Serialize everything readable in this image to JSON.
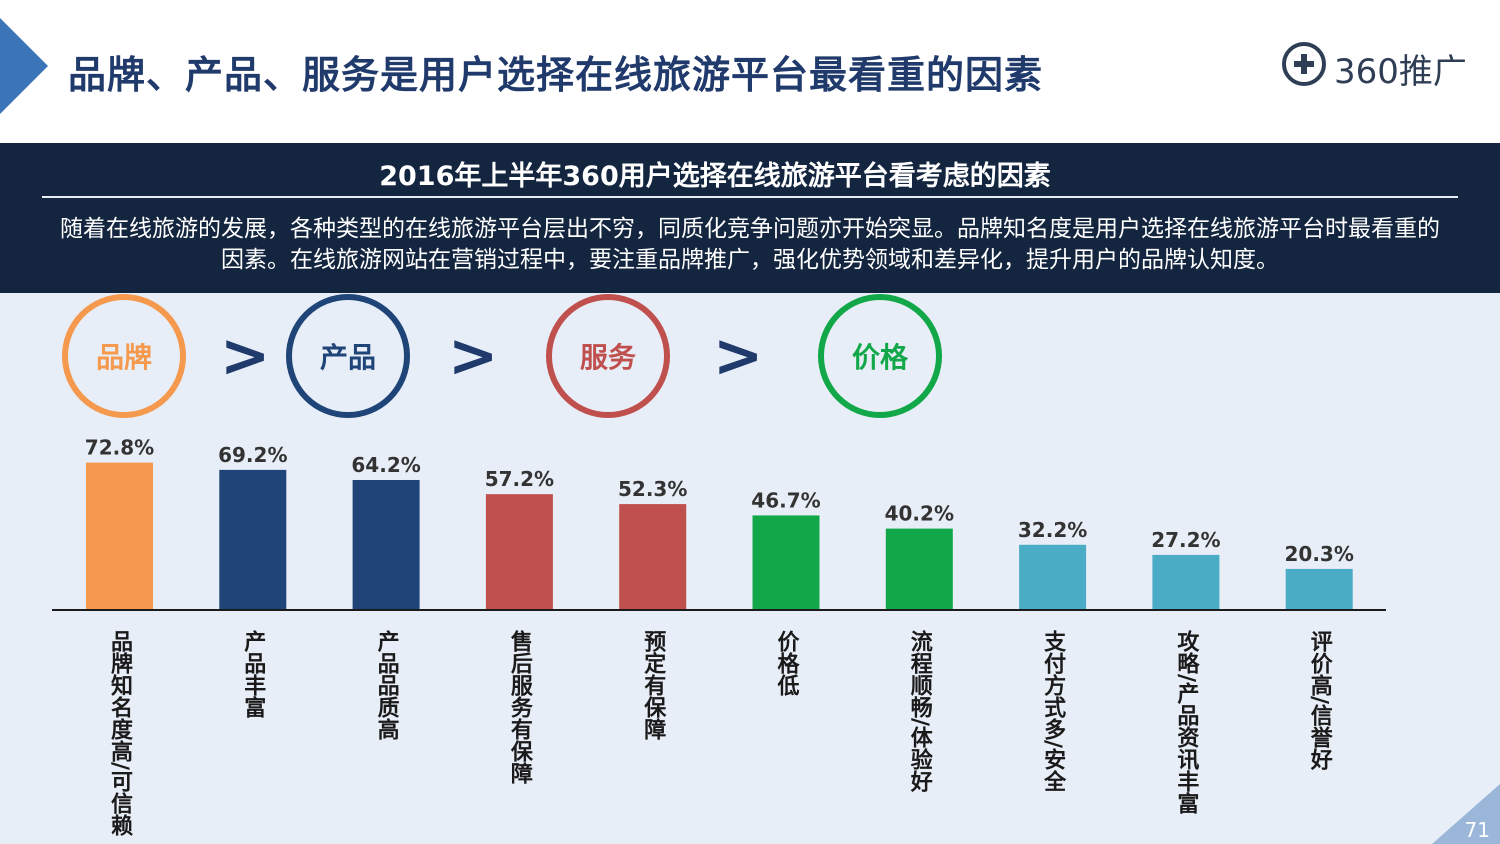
{
  "header": {
    "title": "品牌、产品、服务是用户选择在线旅游平台最看重的因素",
    "logo_text": "360推广"
  },
  "band": {
    "subtitle": "2016年上半年360用户选择在线旅游平台看考虑的因素",
    "description": "随着在线旅游的发展，各种类型的在线旅游平台层出不穷，同质化竞争问题亦开始突显。品牌知名度是用户选择在线旅游平台时最看重的因素。在线旅游网站在营销过程中，要注重品牌推广，强化优势领域和差异化，提升用户的品牌认知度。"
  },
  "ranking": {
    "items": [
      {
        "label": "品牌",
        "color": "#f5994e"
      },
      {
        "label": "产品",
        "color": "#1f4478"
      },
      {
        "label": "服务",
        "color": "#c0504d"
      },
      {
        "label": "价格",
        "color": "#12a84a"
      }
    ],
    "separator": ">"
  },
  "chart_data": {
    "type": "bar",
    "categories": [
      "品牌知名度高/可信赖",
      "产品丰富",
      "产品品质高",
      "售后服务有保障",
      "预定有保障",
      "价格低",
      "流程顺畅/体验好",
      "支付方式多/安全",
      "攻略/产品资讯丰富",
      "评价高/信誉好"
    ],
    "values": [
      72.8,
      69.2,
      64.2,
      57.2,
      52.3,
      46.7,
      40.2,
      32.2,
      27.2,
      20.3
    ],
    "value_labels": [
      "72.8%",
      "69.2%",
      "64.2%",
      "57.2%",
      "52.3%",
      "46.7%",
      "40.2%",
      "32.2%",
      "27.2%",
      "20.3%"
    ],
    "colors": [
      "#f5994e",
      "#1f4478",
      "#1f4478",
      "#c0504d",
      "#c0504d",
      "#12a84a",
      "#12a84a",
      "#4bacc6",
      "#4bacc6",
      "#4bacc6"
    ],
    "title": "2016年上半年360用户选择在线旅游平台看考虑的因素",
    "xlabel": "",
    "ylabel": "",
    "ylim": [
      0,
      80
    ],
    "grid": false,
    "legend": "none"
  },
  "page_number": "71"
}
